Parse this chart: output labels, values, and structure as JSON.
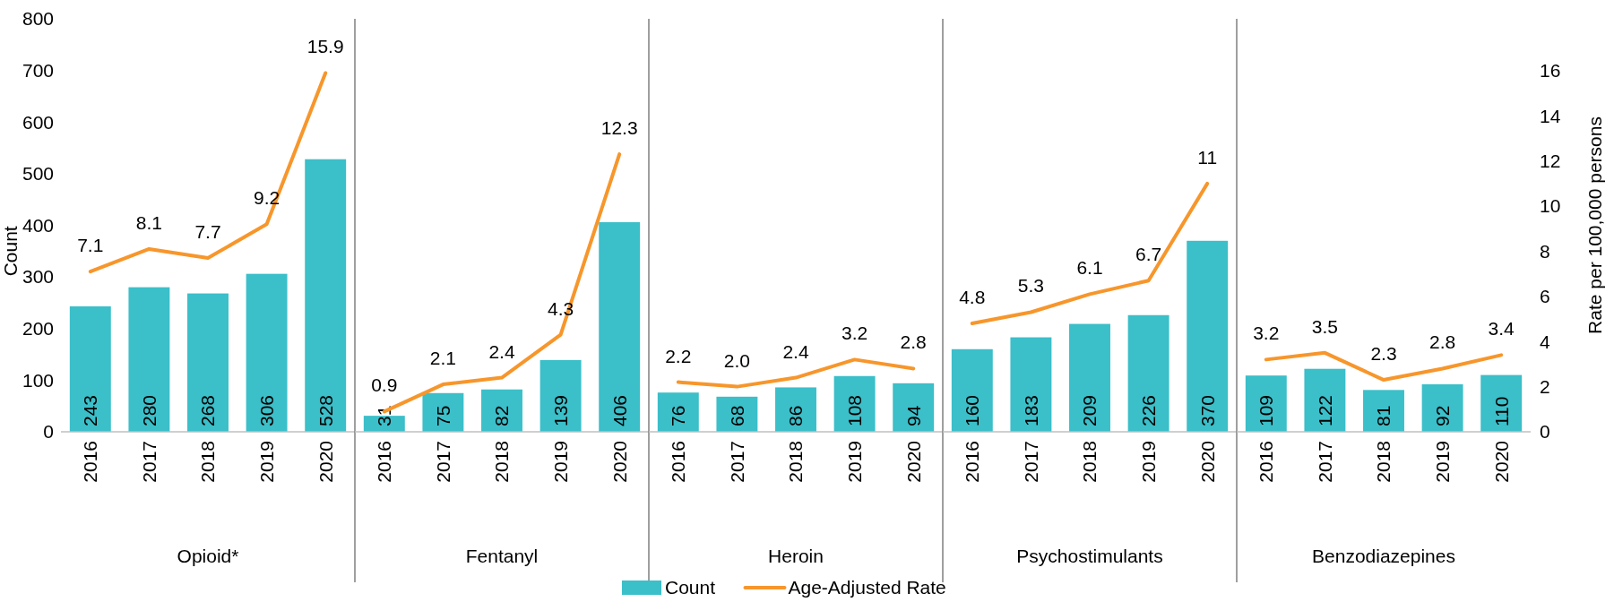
{
  "chart_data": [
    {
      "type": "bar",
      "xlabel": "Opioid*",
      "categories": [
        "2016",
        "2017",
        "2018",
        "2019",
        "2020"
      ],
      "ylabel": "Count",
      "ylim": [
        0,
        800
      ],
      "yticks": [
        0,
        100,
        200,
        300,
        400,
        500,
        600,
        700,
        800
      ],
      "y2lim": [
        0,
        18.3
      ],
      "legend": false,
      "series": [
        {
          "color": "#3bbfc9",
          "values": [
            243,
            280,
            268,
            306,
            528
          ],
          "value_labels": [
            "243",
            "280",
            "268",
            "306",
            "528"
          ]
        },
        {
          "type": "line",
          "axis": "y2",
          "color": "#f7962b",
          "values": [
            7.1,
            8.1,
            7.7,
            9.2,
            15.9
          ],
          "value_labels": [
            "7.1",
            "8.1",
            "7.7",
            "9.2",
            "15.9"
          ]
        }
      ]
    },
    {
      "type": "bar",
      "xlabel": "Fentanyl",
      "categories": [
        "2016",
        "2017",
        "2018",
        "2019",
        "2020"
      ],
      "ylim": [
        0,
        800
      ],
      "y2lim": [
        0,
        18.3
      ],
      "legend": false,
      "series": [
        {
          "color": "#3bbfc9",
          "values": [
            31,
            75,
            82,
            139,
            406
          ],
          "value_labels": [
            "31",
            "75",
            "82",
            "139",
            "406"
          ]
        },
        {
          "type": "line",
          "axis": "y2",
          "color": "#f7962b",
          "values": [
            0.9,
            2.1,
            2.4,
            4.3,
            12.3
          ],
          "value_labels": [
            "0.9",
            "2.1",
            "2.4",
            "4.3",
            "12.3"
          ]
        }
      ]
    },
    {
      "type": "bar",
      "xlabel": "Heroin",
      "categories": [
        "2016",
        "2017",
        "2018",
        "2019",
        "2020"
      ],
      "ylim": [
        0,
        800
      ],
      "y2lim": [
        0,
        18.3
      ],
      "legend": "bottom",
      "series": [
        {
          "name": "Count",
          "color": "#3bbfc9",
          "values": [
            76,
            68,
            86,
            108,
            94
          ],
          "value_labels": [
            "76",
            "68",
            "86",
            "108",
            "94"
          ]
        },
        {
          "name": "Age-Adjusted Rate",
          "type": "line",
          "axis": "y2",
          "color": "#f7962b",
          "values": [
            2.2,
            2.0,
            2.4,
            3.2,
            2.8
          ],
          "value_labels": [
            "2.2",
            "2.0",
            "2.4",
            "3.2",
            "2.8"
          ]
        }
      ]
    },
    {
      "type": "bar",
      "xlabel": "Psychostimulants",
      "categories": [
        "2016",
        "2017",
        "2018",
        "2019",
        "2020"
      ],
      "ylim": [
        0,
        800
      ],
      "y2lim": [
        0,
        18.3
      ],
      "legend": false,
      "series": [
        {
          "color": "#3bbfc9",
          "values": [
            160,
            183,
            209,
            226,
            370
          ],
          "value_labels": [
            "160",
            "183",
            "209",
            "226",
            "370"
          ]
        },
        {
          "type": "line",
          "axis": "y2",
          "color": "#f7962b",
          "values": [
            4.8,
            5.3,
            6.1,
            6.7,
            11
          ],
          "value_labels": [
            "4.8",
            "5.3",
            "6.1",
            "6.7",
            "11"
          ]
        }
      ]
    },
    {
      "type": "bar",
      "xlabel": "Benzodiazepines",
      "categories": [
        "2016",
        "2017",
        "2018",
        "2019",
        "2020"
      ],
      "ylim": [
        0,
        800
      ],
      "y2lim": [
        0,
        18.3
      ],
      "y2ticks": [
        0,
        2,
        4,
        6,
        8,
        10,
        12,
        14,
        16
      ],
      "y2label": "Rate per 100,000 persons",
      "legend": false,
      "series": [
        {
          "color": "#3bbfc9",
          "values": [
            109,
            122,
            81,
            92,
            110
          ],
          "value_labels": [
            "109",
            "122",
            "81",
            "92",
            "110"
          ]
        },
        {
          "type": "line",
          "axis": "y2",
          "color": "#f7962b",
          "values": [
            3.2,
            3.5,
            2.3,
            2.8,
            3.4
          ],
          "value_labels": [
            "3.2",
            "3.5",
            "2.3",
            "2.8",
            "3.4"
          ]
        }
      ]
    }
  ]
}
